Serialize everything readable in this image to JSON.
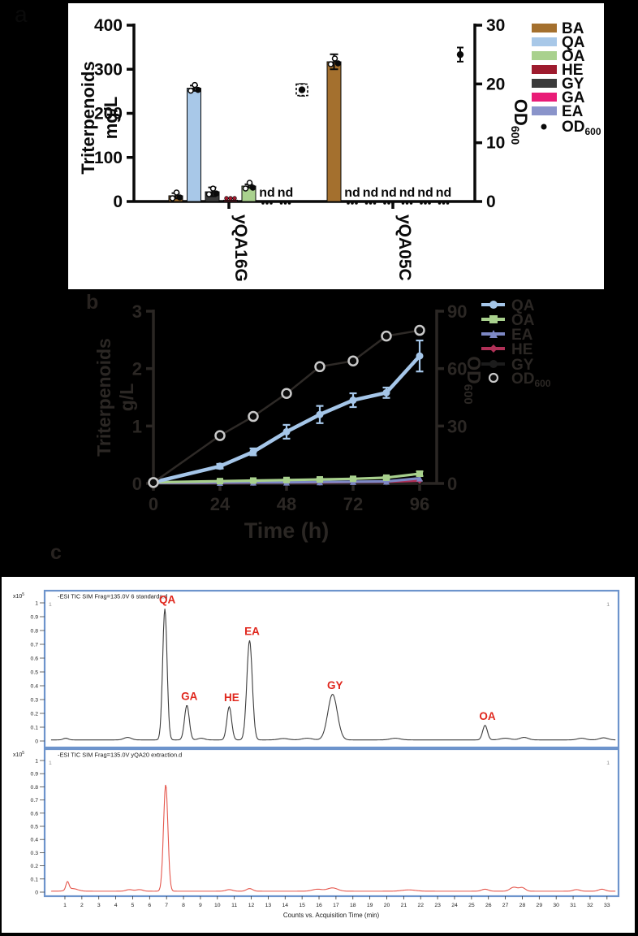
{
  "figure": {
    "background": "#000000"
  },
  "panels": {
    "a": {
      "letter": "a"
    },
    "b": {
      "letter": "b"
    },
    "c": {
      "letter": "c"
    }
  },
  "chart_data": [
    {
      "id": "panel-a",
      "type": "bar",
      "panel_label": "a",
      "ylabel_lines": [
        "Triterpenoids",
        "mg/L"
      ],
      "y2label": {
        "text": "OD",
        "sub": "600"
      },
      "ylim": [
        0,
        400
      ],
      "yticks": [
        0,
        100,
        200,
        300,
        400
      ],
      "y2lim": [
        0,
        30
      ],
      "y2ticks": [
        0,
        10,
        20,
        30
      ],
      "nd_text": "nd",
      "ink": "#0a0a0a",
      "colors": {
        "BA": "#a4702e",
        "QA": "#a8c8e8",
        "OA": "#a9d18e",
        "HE": "#9e1b2e",
        "GY": "#3b3b3b",
        "GA": "#e91c77",
        "EA": "#8a94ca",
        "OD600": "#0a0a0a"
      },
      "legend": [
        {
          "label": "BA",
          "swatch": "#a4702e"
        },
        {
          "label": "QA",
          "swatch": "#a8c8e8"
        },
        {
          "label": "OA",
          "swatch": "#a9d18e"
        },
        {
          "label": "HE",
          "swatch": "#9e1b2e"
        },
        {
          "label": "GY",
          "swatch": "#3b3b3b"
        },
        {
          "label": "GA",
          "swatch": "#e91c77"
        },
        {
          "label": "EA",
          "swatch": "#8a94ca"
        },
        {
          "label": "OD",
          "sub": "600",
          "marker": "dot"
        }
      ],
      "bar_order": [
        "BA",
        "QA",
        "GY",
        "HE",
        "OA",
        "GA",
        "EA"
      ],
      "groups": [
        {
          "name": "yQA16G",
          "bars": [
            {
              "series": "BA",
              "value": 13,
              "err": 6
            },
            {
              "series": "QA",
              "value": 257,
              "err": 6
            },
            {
              "series": "GY",
              "value": 22,
              "err": 10
            },
            {
              "series": "HE",
              "value": 3,
              "err": 1
            },
            {
              "series": "OA",
              "value": 35,
              "err": 4
            },
            {
              "series": "GA",
              "value": "nd"
            },
            {
              "series": "EA",
              "value": "nd"
            }
          ],
          "od600": {
            "value": 19,
            "err": 1,
            "boxed": true
          }
        },
        {
          "name": "yQA05C",
          "bars": [
            {
              "series": "BA",
              "value": 317,
              "err": 17
            },
            {
              "series": "QA",
              "value": "nd"
            },
            {
              "series": "GY",
              "value": "nd"
            },
            {
              "series": "HE",
              "value": "nd"
            },
            {
              "series": "OA",
              "value": "nd"
            },
            {
              "series": "GA",
              "value": "nd"
            },
            {
              "series": "EA",
              "value": "nd"
            }
          ],
          "od600": {
            "value": 25,
            "err": 1.2,
            "boxed": false
          }
        }
      ]
    },
    {
      "id": "panel-b",
      "type": "line",
      "panel_label": "b",
      "xlabel": "Time (h)",
      "ylabel_lines": [
        "Triterpenoids",
        "g/L"
      ],
      "y2label": {
        "text": "OD",
        "sub": "600"
      },
      "xlim": [
        0,
        96
      ],
      "xticks": [
        0,
        24,
        48,
        72,
        96
      ],
      "ylim": [
        0,
        3
      ],
      "yticks": [
        0,
        1,
        2,
        3
      ],
      "y2lim": [
        0,
        90
      ],
      "y2ticks": [
        0,
        30,
        60,
        90
      ],
      "ink": "#2b2724",
      "x": [
        0,
        24,
        36,
        48,
        60,
        72,
        84,
        96
      ],
      "series": [
        {
          "name": "GY",
          "axis": "left",
          "color": "#1c1c1c",
          "marker": "circle",
          "values": [
            0.005,
            0.01,
            0.01,
            0.01,
            0.015,
            0.015,
            0.02,
            0.03
          ],
          "errors": [
            0,
            0,
            0,
            0,
            0,
            0,
            0,
            0
          ]
        },
        {
          "name": "HE",
          "axis": "left",
          "color": "#b03057",
          "marker": "diamond",
          "values": [
            0.008,
            0.012,
            0.015,
            0.018,
            0.02,
            0.025,
            0.03,
            0.05
          ],
          "errors": [
            0,
            0,
            0,
            0,
            0,
            0,
            0,
            0
          ]
        },
        {
          "name": "EA",
          "axis": "left",
          "color": "#7d88c5",
          "marker": "triangle",
          "values": [
            0.01,
            0.015,
            0.02,
            0.02,
            0.025,
            0.03,
            0.035,
            0.09
          ],
          "errors": [
            0,
            0,
            0,
            0,
            0,
            0,
            0,
            0
          ]
        },
        {
          "name": "OA",
          "axis": "left",
          "color": "#a8d08d",
          "marker": "square",
          "values": [
            0.02,
            0.04,
            0.05,
            0.06,
            0.07,
            0.08,
            0.1,
            0.17
          ],
          "errors": [
            0.01,
            0.01,
            0.01,
            0.01,
            0.01,
            0.01,
            0.02,
            0.04
          ]
        },
        {
          "name": "QA",
          "axis": "left",
          "color": "#a5c6e9",
          "marker": "circle",
          "values": [
            0.02,
            0.3,
            0.55,
            0.9,
            1.2,
            1.45,
            1.58,
            2.22
          ],
          "errors": [
            0.02,
            0.04,
            0.06,
            0.12,
            0.15,
            0.12,
            0.09,
            0.27
          ]
        },
        {
          "name": "OD600",
          "axis": "right",
          "color": "#2e2a27",
          "marker": "open-circle",
          "marker_stroke": "#c9c9c9",
          "values": [
            0.5,
            25,
            35,
            47,
            61,
            64,
            77,
            80
          ],
          "errors": [
            0,
            0,
            0,
            0,
            0,
            0,
            0,
            0
          ]
        }
      ],
      "legend": [
        {
          "label": "QA",
          "color": "#a5c6e9",
          "marker": "circle"
        },
        {
          "label": "OA",
          "color": "#a8d08d",
          "marker": "square"
        },
        {
          "label": "EA",
          "color": "#7d88c5",
          "marker": "triangle"
        },
        {
          "label": "HE",
          "color": "#b03057",
          "marker": "diamond"
        },
        {
          "label": "GY",
          "color": "#1c1c1c",
          "marker": "circle"
        },
        {
          "label": "OD",
          "sub": "600",
          "marker": "open-circle",
          "color": "#c9c9c9"
        }
      ]
    },
    {
      "id": "chromatogram-standards",
      "type": "chromatogram",
      "title": "-ESI TIC SIM Frag=135.0V 6 standards.d",
      "y_unit": "x10",
      "y_unit_exp": "5",
      "ylim": [
        0,
        1
      ],
      "ytick_step": 0.1,
      "corner_marks": [
        "1",
        "1"
      ],
      "line_color": "#3d3d3d",
      "label_color": "#e0281e",
      "baseline": 0.008,
      "labeled_peaks": [
        {
          "name": "QA",
          "t": 6.9,
          "h": 0.95
        },
        {
          "name": "GA",
          "t": 8.2,
          "h": 0.25
        },
        {
          "name": "HE",
          "t": 10.7,
          "h": 0.24
        },
        {
          "name": "EA",
          "t": 11.9,
          "h": 0.72
        },
        {
          "name": "GY",
          "t": 16.8,
          "h": 0.33
        },
        {
          "name": "OA",
          "t": 25.8,
          "h": 0.105
        }
      ],
      "peaks": [
        {
          "t": 1.05,
          "h": 0.012,
          "w": 0.15
        },
        {
          "t": 4.7,
          "h": 0.018,
          "w": 0.22
        },
        {
          "t": 6.9,
          "h": 0.95,
          "w": 0.13
        },
        {
          "t": 8.2,
          "h": 0.25,
          "w": 0.14
        },
        {
          "t": 9.05,
          "h": 0.012,
          "w": 0.2
        },
        {
          "t": 10.7,
          "h": 0.24,
          "w": 0.14
        },
        {
          "t": 11.9,
          "h": 0.72,
          "w": 0.16
        },
        {
          "t": 13.9,
          "h": 0.01,
          "w": 0.3
        },
        {
          "t": 15.3,
          "h": 0.012,
          "w": 0.3
        },
        {
          "t": 16.8,
          "h": 0.33,
          "w": 0.28
        },
        {
          "t": 20.5,
          "h": 0.012,
          "w": 0.3
        },
        {
          "t": 25.8,
          "h": 0.105,
          "w": 0.14
        },
        {
          "t": 27.0,
          "h": 0.012,
          "w": 0.3
        },
        {
          "t": 28.1,
          "h": 0.018,
          "w": 0.25
        },
        {
          "t": 31.5,
          "h": 0.012,
          "w": 0.25
        },
        {
          "t": 32.8,
          "h": 0.015,
          "w": 0.25
        }
      ]
    },
    {
      "id": "chromatogram-extraction",
      "type": "chromatogram",
      "title": "-ESI TIC SIM Frag=135.0V yQA20 extraction.d",
      "y_unit": "x10",
      "y_unit_exp": "5",
      "ylim": [
        0,
        1
      ],
      "ytick_step": 0.1,
      "corner_marks": [
        "1",
        "1"
      ],
      "line_color": "#e5574d",
      "baseline": 0.007,
      "xlabel": "Counts vs. Acquisition Time (min)",
      "xticks": [
        1,
        2,
        3,
        4,
        5,
        6,
        7,
        8,
        9,
        10,
        11,
        12,
        13,
        14,
        15,
        16,
        17,
        18,
        19,
        20,
        21,
        22,
        23,
        24,
        25,
        26,
        27,
        28,
        29,
        30,
        31,
        32,
        33
      ],
      "labeled_peaks": [],
      "peaks": [
        {
          "t": 1.15,
          "h": 0.062,
          "w": 0.09
        },
        {
          "t": 1.45,
          "h": 0.02,
          "w": 0.3
        },
        {
          "t": 4.8,
          "h": 0.012,
          "w": 0.2
        },
        {
          "t": 5.4,
          "h": 0.012,
          "w": 0.2
        },
        {
          "t": 6.95,
          "h": 0.81,
          "w": 0.13
        },
        {
          "t": 10.7,
          "h": 0.012,
          "w": 0.2
        },
        {
          "t": 11.9,
          "h": 0.02,
          "w": 0.18
        },
        {
          "t": 15.9,
          "h": 0.015,
          "w": 0.3
        },
        {
          "t": 16.8,
          "h": 0.025,
          "w": 0.3
        },
        {
          "t": 21.3,
          "h": 0.01,
          "w": 0.4
        },
        {
          "t": 25.8,
          "h": 0.015,
          "w": 0.2
        },
        {
          "t": 27.5,
          "h": 0.03,
          "w": 0.22
        },
        {
          "t": 28.0,
          "h": 0.026,
          "w": 0.18
        },
        {
          "t": 31.2,
          "h": 0.012,
          "w": 0.2
        },
        {
          "t": 32.7,
          "h": 0.015,
          "w": 0.2
        }
      ]
    }
  ]
}
